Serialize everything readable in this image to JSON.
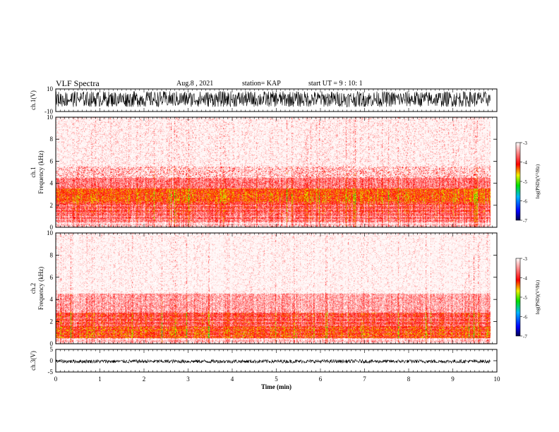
{
  "header": {
    "title": "VLF Spectra",
    "date": "Aug.8 , 2021",
    "station": "station= KAP",
    "start_ut": "start UT =  9 : 10: 1"
  },
  "chart_data": [
    {
      "type": "line",
      "name": "waveform-ch1",
      "ylabel": "ch.1(V)",
      "ylim": [
        -10,
        10
      ],
      "yticks": [
        "10",
        "-10"
      ],
      "xlim": [
        0,
        10
      ],
      "signal_min": -6,
      "signal_max": 10,
      "signal_mean": 1
    },
    {
      "type": "heatmap",
      "name": "spectrogram-ch1",
      "ylabel": "ch.1 Frequency (kHz)",
      "ylim": [
        0,
        10
      ],
      "yticks": [
        "0",
        "2",
        "4",
        "6",
        "8",
        "10"
      ],
      "xlim": [
        0,
        9.85
      ],
      "value_range_log10_psd": [
        -7,
        -3
      ],
      "band_levels": [
        {
          "f": [
            0,
            0.5
          ],
          "level": -3.3
        },
        {
          "f": [
            0.5,
            1.2
          ],
          "level": -3.7
        },
        {
          "f": [
            1.2,
            2.2
          ],
          "level": -3.85
        },
        {
          "f": [
            2.2,
            3.5
          ],
          "level": -4.2
        },
        {
          "f": [
            3.5,
            5.5
          ],
          "level": -3.6
        },
        {
          "f": [
            5.5,
            10
          ],
          "level": -3.1
        }
      ]
    },
    {
      "type": "heatmap",
      "name": "spectrogram-ch2",
      "ylabel": "ch.2 Frequency (kHz)",
      "ylim": [
        0,
        10
      ],
      "yticks": [
        "0",
        "2",
        "4",
        "6",
        "8",
        "10"
      ],
      "xlim": [
        0,
        9.85
      ],
      "value_range_log10_psd": [
        -7,
        -3
      ],
      "band_levels": [
        {
          "f": [
            0,
            0.5
          ],
          "level": -3.3
        },
        {
          "f": [
            0.5,
            1.5
          ],
          "level": -4.2
        },
        {
          "f": [
            1.5,
            2.8
          ],
          "level": -3.9
        },
        {
          "f": [
            2.8,
            4.5
          ],
          "level": -3.4
        },
        {
          "f": [
            4.5,
            10
          ],
          "level": -3.0
        }
      ]
    },
    {
      "type": "line",
      "name": "waveform-ch3",
      "ylabel": "ch.3(V)",
      "ylim": [
        -5,
        5
      ],
      "yticks": [
        "5",
        "0",
        "-5"
      ],
      "xlim": [
        0,
        10
      ],
      "signal_min": -1,
      "signal_max": 0.5,
      "signal_mean": -0.3,
      "xlabel": "Time (min)",
      "xticks": [
        "0",
        "1",
        "2",
        "3",
        "4",
        "5",
        "6",
        "7",
        "8",
        "9",
        "10"
      ]
    }
  ],
  "colorbar": {
    "label": "log(PSD)(V²/Hz)",
    "ticks": [
      "-3",
      "-4",
      "-5",
      "-6",
      "-7"
    ],
    "range": [
      -7,
      -3
    ]
  }
}
